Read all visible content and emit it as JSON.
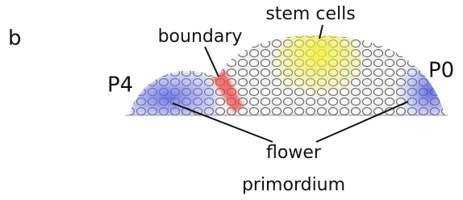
{
  "panel_label": "b",
  "labels": {
    "stem_cells": "stem cells",
    "boundary": "boundary",
    "p4": "P4",
    "p0": "P0",
    "flower_primordium": [
      "flower",
      "primordium"
    ]
  }
}
